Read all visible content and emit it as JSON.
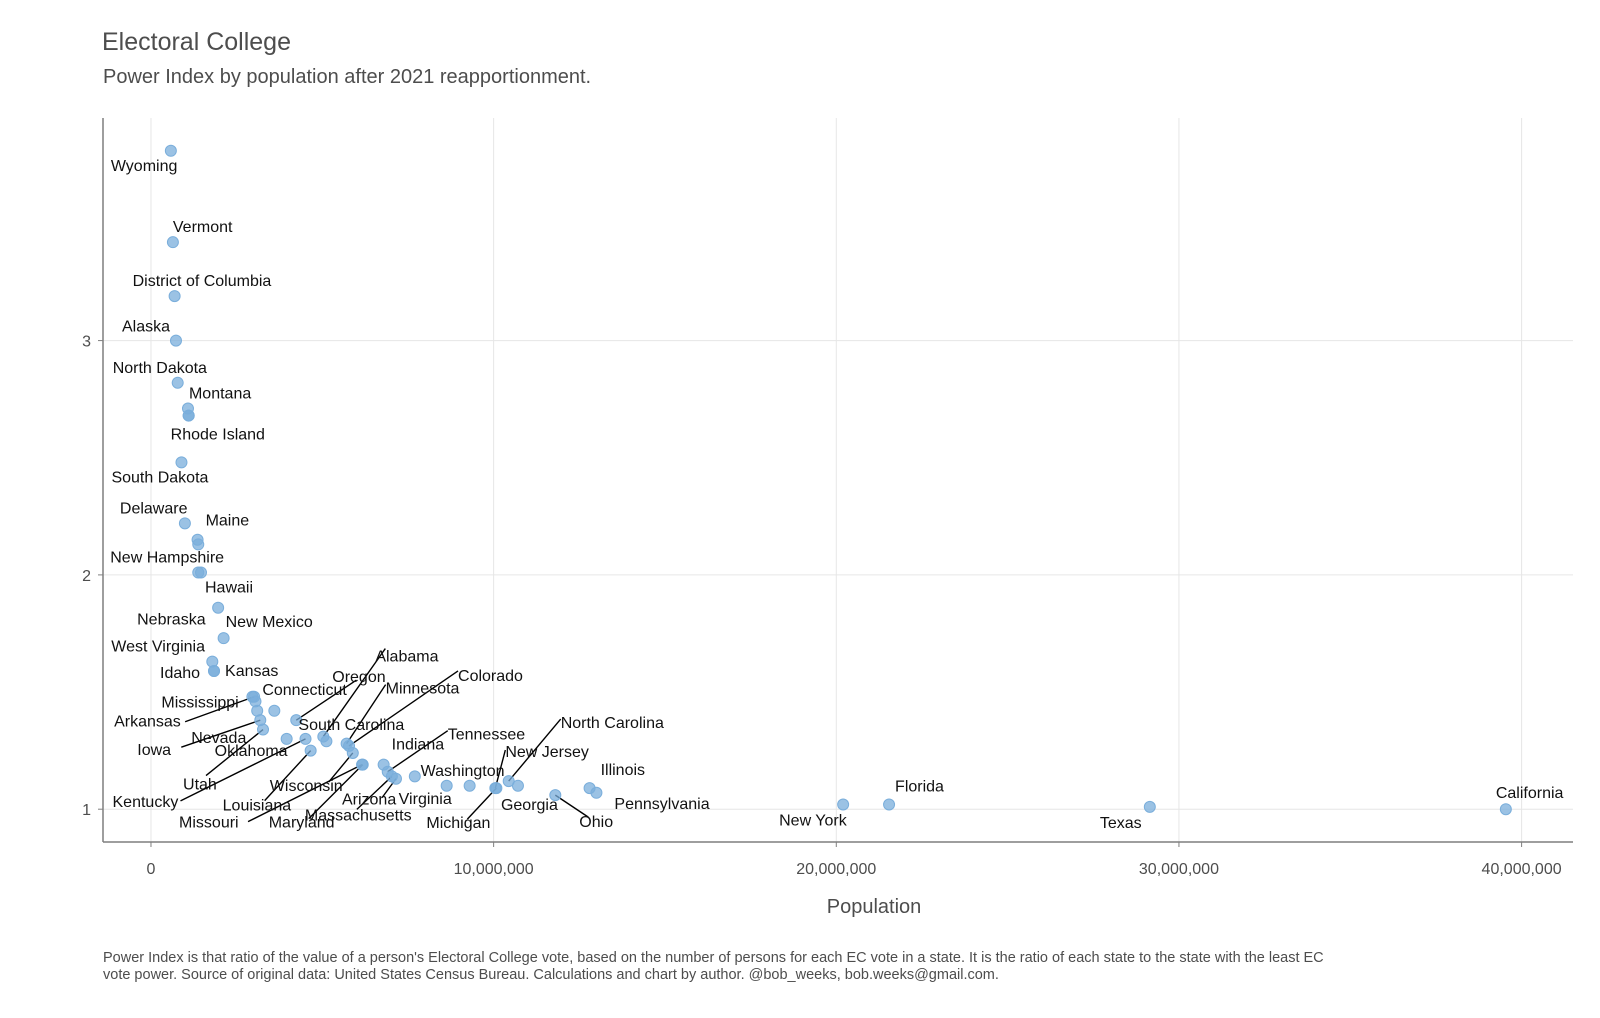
{
  "header": {
    "title": "Electoral College",
    "subtitle": "Power Index by population after 2021 reapportionment."
  },
  "caption": "Power Index is that ratio of the value of a person's Electoral College vote, based on the number of persons for each EC vote in a state. It is the ratio of each state to the state with the least EC vote power. Source of original data: United States Census Bureau. Calculations and chart by author. @bob_weeks, bob.weeks@gmail.com.",
  "colors": {
    "point": "#7aaedb",
    "text": "#4d4d4d",
    "grid": "#e6e6e6",
    "axis": "#7f7f7f",
    "leader": "#000000"
  },
  "chart_data": {
    "type": "scatter",
    "title": "Electoral College",
    "subtitle": "Power Index by population after 2021 reapportionment.",
    "xlabel": "Population",
    "ylabel": "",
    "xlim": [
      -1400000,
      41500000
    ],
    "ylim": [
      0.86,
      3.95
    ],
    "x_ticks": [
      0,
      10000000,
      20000000,
      30000000,
      40000000
    ],
    "x_tick_labels": [
      "0",
      "10,000,000",
      "20,000,000",
      "30,000,000",
      "40,000,000"
    ],
    "y_ticks": [
      1,
      2,
      3
    ],
    "y_tick_labels": [
      "1",
      "2",
      "3"
    ],
    "grid": true,
    "legend": "none",
    "points": [
      {
        "label": "Wyoming",
        "x": 580000,
        "y": 3.81
      },
      {
        "label": "Vermont",
        "x": 640000,
        "y": 3.42
      },
      {
        "label": "District of Columbia",
        "x": 690000,
        "y": 3.19
      },
      {
        "label": "Alaska",
        "x": 730000,
        "y": 3.0
      },
      {
        "label": "North Dakota",
        "x": 780000,
        "y": 2.82
      },
      {
        "label": "Montana",
        "x": 1080000,
        "y": 2.71
      },
      {
        "label": "",
        "x": 1100000,
        "y": 2.68
      },
      {
        "label": "Rhode Island",
        "x": 1100000,
        "y": 2.68
      },
      {
        "label": "South Dakota",
        "x": 890000,
        "y": 2.48
      },
      {
        "label": "Delaware",
        "x": 990000,
        "y": 2.22
      },
      {
        "label": "Maine",
        "x": 1360000,
        "y": 2.15
      },
      {
        "label": "",
        "x": 1380000,
        "y": 2.13
      },
      {
        "label": "New Hampshire",
        "x": 1380000,
        "y": 2.01
      },
      {
        "label": "Hawaii",
        "x": 1460000,
        "y": 2.01
      },
      {
        "label": "Nebraska",
        "x": 1960000,
        "y": 1.86
      },
      {
        "label": "New Mexico",
        "x": 2120000,
        "y": 1.73
      },
      {
        "label": "West Virginia",
        "x": 1790000,
        "y": 1.63
      },
      {
        "label": "Idaho",
        "x": 1840000,
        "y": 1.59
      },
      {
        "label": "Kansas",
        "x": 1840000,
        "y": 1.59
      },
      {
        "label": "Mississippi",
        "x": 2960000,
        "y": 1.48
      },
      {
        "label": "Arkansas",
        "x": 3010000,
        "y": 1.48
      },
      {
        "label": "",
        "x": 3050000,
        "y": 1.46
      },
      {
        "label": "Nevada",
        "x": 3100000,
        "y": 1.42
      },
      {
        "label": "Connecticut",
        "x": 3600000,
        "y": 1.42
      },
      {
        "label": "Iowa",
        "x": 3190000,
        "y": 1.38
      },
      {
        "label": "Utah",
        "x": 3270000,
        "y": 1.34
      },
      {
        "label": "Oklahoma",
        "x": 3960000,
        "y": 1.3
      },
      {
        "label": "Oregon",
        "x": 4240000,
        "y": 1.38
      },
      {
        "label": "Kentucky",
        "x": 4510000,
        "y": 1.3
      },
      {
        "label": "Louisiana",
        "x": 4660000,
        "y": 1.25
      },
      {
        "label": "Alabama",
        "x": 5030000,
        "y": 1.31
      },
      {
        "label": "South Carolina",
        "x": 5120000,
        "y": 1.29
      },
      {
        "label": "Minnesota",
        "x": 5710000,
        "y": 1.28
      },
      {
        "label": "Colorado",
        "x": 5780000,
        "y": 1.27
      },
      {
        "label": "Wisconsin",
        "x": 5890000,
        "y": 1.24
      },
      {
        "label": "Missouri",
        "x": 6160000,
        "y": 1.19
      },
      {
        "label": "Maryland",
        "x": 6180000,
        "y": 1.19
      },
      {
        "label": "Indiana",
        "x": 6790000,
        "y": 1.19
      },
      {
        "label": "Tennessee",
        "x": 6910000,
        "y": 1.16
      },
      {
        "label": "Massachusetts",
        "x": 7030000,
        "y": 1.14
      },
      {
        "label": "Arizona",
        "x": 7150000,
        "y": 1.13
      },
      {
        "label": "",
        "x": 7700000,
        "y": 1.14
      },
      {
        "label": "Virginia",
        "x": 8630000,
        "y": 1.1
      },
      {
        "label": "Washington",
        "x": 9300000,
        "y": 1.1
      },
      {
        "label": "New Jersey",
        "x": 10050000,
        "y": 1.09
      },
      {
        "label": "North Carolina",
        "x": 10440000,
        "y": 1.12
      },
      {
        "label": "Georgia",
        "x": 10710000,
        "y": 1.1
      },
      {
        "label": "Michigan",
        "x": 10080000,
        "y": 1.09
      },
      {
        "label": "Ohio",
        "x": 11800000,
        "y": 1.06
      },
      {
        "label": "Illinois",
        "x": 12800000,
        "y": 1.09
      },
      {
        "label": "Pennsylvania",
        "x": 13000000,
        "y": 1.07
      },
      {
        "label": "New York",
        "x": 20200000,
        "y": 1.02
      },
      {
        "label": "Florida",
        "x": 21540000,
        "y": 1.02
      },
      {
        "label": "Texas",
        "x": 29150000,
        "y": 1.01
      },
      {
        "label": "California",
        "x": 39540000,
        "y": 1.0
      }
    ]
  }
}
